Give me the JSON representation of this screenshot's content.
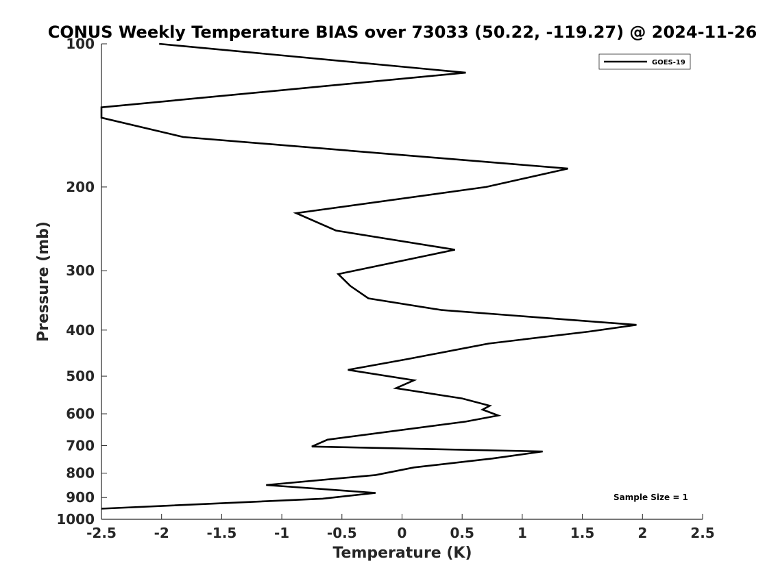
{
  "chart_data": {
    "type": "line",
    "title": "CONUS Weekly Temperature BIAS over 73033 (50.22, -119.27) @ 2024-11-26",
    "xlabel": "Temperature (K)",
    "ylabel": "Pressure (mb)",
    "xlim": [
      -2.5,
      2.5
    ],
    "ylim": [
      100,
      1000
    ],
    "y_scale": "log",
    "y_reversed": true,
    "grid": false,
    "legend_placement": "top-right",
    "x_ticks": [
      "-2.5",
      "-2",
      "-1.5",
      "-1",
      "-0.5",
      "0",
      "0.5",
      "1",
      "1.5",
      "2",
      "2.5"
    ],
    "y_ticks": [
      "100",
      "200",
      "300",
      "400",
      "500",
      "600",
      "700",
      "800",
      "900",
      "1000"
    ],
    "series": [
      {
        "name": "GOES-19",
        "color": "#000000",
        "points": [
          {
            "x": -2.02,
            "y": 100
          },
          {
            "x": 0.53,
            "y": 115
          },
          {
            "x": -2.5,
            "y": 136
          },
          {
            "x": -2.5,
            "y": 143
          },
          {
            "x": -1.82,
            "y": 157
          },
          {
            "x": 1.38,
            "y": 183
          },
          {
            "x": 0.7,
            "y": 200
          },
          {
            "x": -0.88,
            "y": 227
          },
          {
            "x": -0.55,
            "y": 247
          },
          {
            "x": 0.44,
            "y": 271
          },
          {
            "x": -0.53,
            "y": 305
          },
          {
            "x": -0.43,
            "y": 323
          },
          {
            "x": -0.28,
            "y": 343
          },
          {
            "x": 0.33,
            "y": 363
          },
          {
            "x": 1.95,
            "y": 390
          },
          {
            "x": 1.55,
            "y": 403
          },
          {
            "x": 0.72,
            "y": 427
          },
          {
            "x": 0.05,
            "y": 460
          },
          {
            "x": -0.45,
            "y": 485
          },
          {
            "x": 0.1,
            "y": 510
          },
          {
            "x": -0.05,
            "y": 530
          },
          {
            "x": 0.5,
            "y": 557
          },
          {
            "x": 0.73,
            "y": 577
          },
          {
            "x": 0.67,
            "y": 588
          },
          {
            "x": 0.8,
            "y": 605
          },
          {
            "x": 0.53,
            "y": 623
          },
          {
            "x": -0.62,
            "y": 680
          },
          {
            "x": -0.75,
            "y": 703
          },
          {
            "x": 1.17,
            "y": 720
          },
          {
            "x": 0.75,
            "y": 745
          },
          {
            "x": 0.1,
            "y": 778
          },
          {
            "x": -0.22,
            "y": 807
          },
          {
            "x": -1.13,
            "y": 847
          },
          {
            "x": -0.22,
            "y": 880
          },
          {
            "x": -0.66,
            "y": 905
          },
          {
            "x": -2.5,
            "y": 950
          }
        ]
      }
    ],
    "annotations": [
      "Sample Size = 1"
    ]
  }
}
